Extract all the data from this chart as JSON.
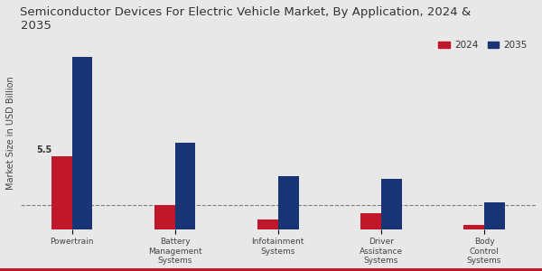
{
  "title": "Semiconductor Devices For Electric Vehicle Market, By Application, 2024 &\n2035",
  "ylabel": "Market Size in USD Billion",
  "categories": [
    "Powertrain",
    "Battery\nManagement\nSystems",
    "Infotainment\nSystems",
    "Driver\nAssistance\nSystems",
    "Body\nControl\nSystems"
  ],
  "values_2024": [
    5.5,
    1.8,
    0.7,
    1.2,
    0.3
  ],
  "values_2035": [
    13.0,
    6.5,
    4.0,
    3.8,
    2.0
  ],
  "color_2024": "#c0182a",
  "color_2035": "#1a3575",
  "annotation_label": "5.5",
  "annotation_bar": 0,
  "background_color": "#e8e8e8",
  "legend_labels": [
    "2024",
    "2035"
  ],
  "bar_width": 0.2,
  "dashed_line_y": 1.8,
  "title_fontsize": 9.5,
  "label_fontsize": 6.5,
  "legend_fontsize": 7.5,
  "ylabel_fontsize": 7
}
